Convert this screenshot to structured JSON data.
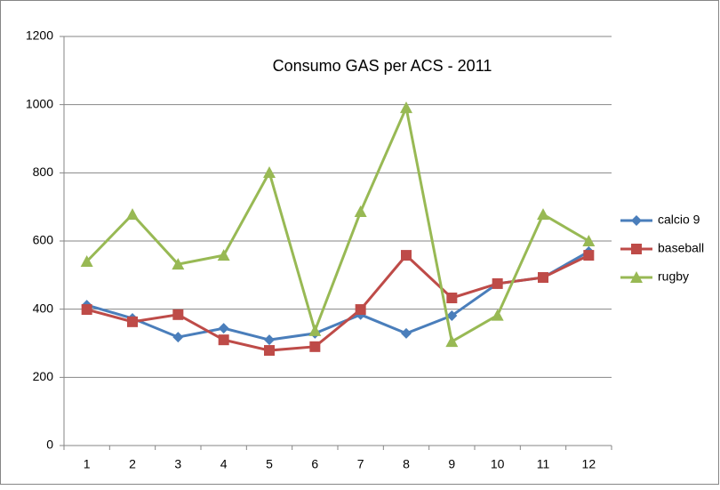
{
  "chart_data": {
    "type": "line",
    "title": "Consumo GAS per ACS - 2011",
    "categories": [
      "1",
      "2",
      "3",
      "4",
      "5",
      "6",
      "7",
      "8",
      "9",
      "10",
      "11",
      "12"
    ],
    "series": [
      {
        "name": "calcio 9",
        "color": "#4a7ebb",
        "marker": "diamond",
        "values": [
          412,
          373,
          318,
          344,
          310,
          329,
          384,
          329,
          381,
          475,
          493,
          569
        ]
      },
      {
        "name": "baseball",
        "color": "#be4b48",
        "marker": "square",
        "values": [
          399,
          363,
          384,
          310,
          279,
          290,
          399,
          558,
          433,
          475,
          493,
          558
        ]
      },
      {
        "name": "rugby",
        "color": "#98b954",
        "marker": "triangle",
        "values": [
          540,
          678,
          532,
          558,
          801,
          337,
          686,
          991,
          305,
          382,
          678,
          600
        ]
      }
    ],
    "ylim": [
      0,
      1200
    ],
    "yticks": [
      0,
      200,
      400,
      600,
      800,
      1000,
      1200
    ],
    "grid": true,
    "legend": "right"
  }
}
